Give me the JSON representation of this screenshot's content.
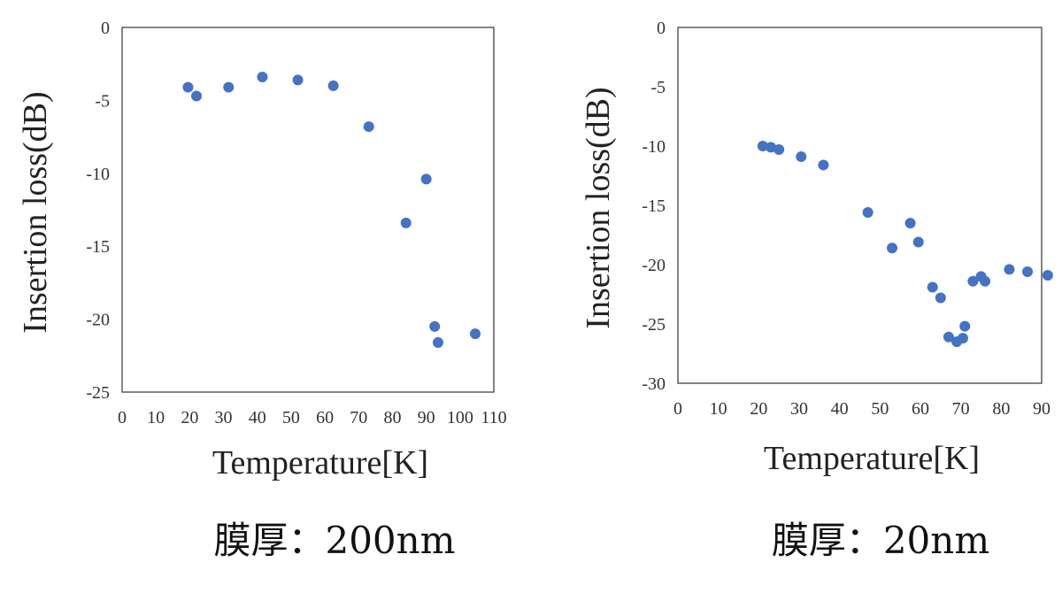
{
  "chart_data": [
    {
      "type": "scatter",
      "title": "",
      "xlabel": "Temperature[K]",
      "ylabel": "Insertion loss(dB)",
      "xlim": [
        0,
        110
      ],
      "ylim": [
        -25,
        0
      ],
      "xticks": [
        0,
        10,
        20,
        30,
        40,
        50,
        60,
        70,
        80,
        90,
        100,
        110
      ],
      "yticks": [
        0,
        -5,
        -10,
        -15,
        -20,
        -25
      ],
      "grid": false,
      "marker_color": "#4472c4",
      "caption": "膜厚：200nm",
      "series": [
        {
          "x": [
            19.5,
            22,
            31.5,
            41.5,
            52,
            62.5,
            73,
            84,
            90,
            92.5,
            93.5,
            104.5
          ],
          "y": [
            -4.1,
            -4.7,
            -4.1,
            -3.4,
            -3.6,
            -4.0,
            -6.8,
            -13.4,
            -10.4,
            -20.5,
            -21.6,
            -21.0
          ]
        }
      ]
    },
    {
      "type": "scatter",
      "title": "",
      "xlabel": "Temperature[K]",
      "ylabel": "Insertion loss(dB)",
      "xlim": [
        0,
        90
      ],
      "ylim": [
        -30,
        0
      ],
      "xticks": [
        0,
        10,
        20,
        30,
        40,
        50,
        60,
        70,
        80,
        90
      ],
      "yticks": [
        0,
        -5,
        -10,
        -15,
        -20,
        -25,
        -30
      ],
      "grid": false,
      "marker_color": "#4472c4",
      "caption": "膜厚：20nm",
      "series": [
        {
          "x": [
            21,
            23,
            25,
            30.5,
            36,
            47,
            53,
            57.5,
            59.5,
            63,
            65,
            67,
            69,
            70.5,
            71,
            73,
            75,
            76,
            82,
            86.5,
            91.5
          ],
          "y": [
            -10.0,
            -10.1,
            -10.3,
            -10.9,
            -11.6,
            -15.6,
            -18.6,
            -16.5,
            -18.1,
            -21.9,
            -22.8,
            -26.1,
            -26.5,
            -26.2,
            -25.2,
            -21.4,
            -21.0,
            -21.4,
            -20.4,
            -20.6,
            -20.9
          ]
        }
      ]
    }
  ]
}
